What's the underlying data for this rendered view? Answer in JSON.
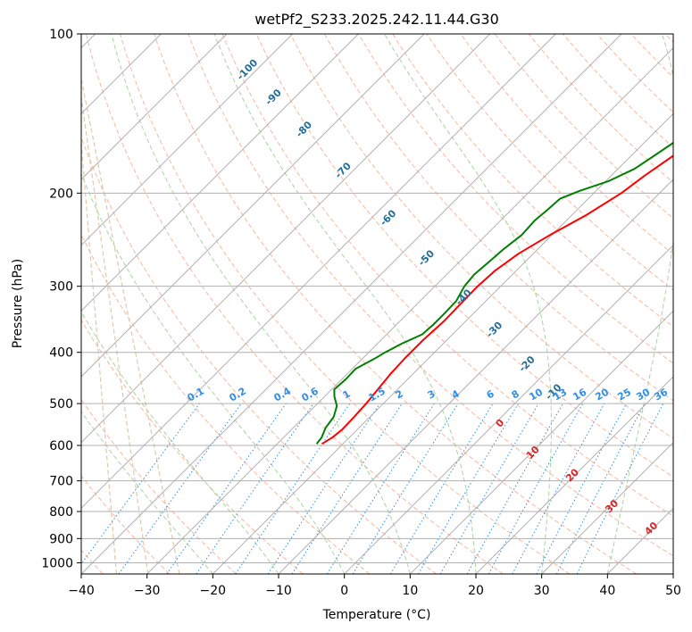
{
  "chart_data": {
    "type": "line",
    "title": "wetPf2_S233.2025.242.11.44.G30",
    "xlabel": "Temperature (°C)",
    "ylabel": "Pressure (hPa)",
    "xlim": [
      -40,
      50
    ],
    "ylim": [
      1050,
      100
    ],
    "y_scale": "log",
    "grid": true,
    "x_ticks": [
      -40,
      -30,
      -20,
      -10,
      0,
      10,
      20,
      30,
      40,
      50
    ],
    "y_ticks": [
      100,
      200,
      300,
      400,
      500,
      600,
      700,
      800,
      900,
      1000
    ],
    "isotherm_temps": [
      -130,
      -120,
      -110,
      -100,
      -90,
      -80,
      -70,
      -60,
      -50,
      -40,
      -30,
      -20,
      -10,
      0,
      10,
      20,
      30,
      40,
      50
    ],
    "dry_adiabat_labels": [
      {
        "text": "-100",
        "p": 118
      },
      {
        "text": "-90",
        "p": 133
      },
      {
        "text": "-80",
        "p": 153
      },
      {
        "text": "-70",
        "p": 183
      },
      {
        "text": "-60",
        "p": 225
      },
      {
        "text": "-50",
        "p": 268
      },
      {
        "text": "-40",
        "p": 318
      },
      {
        "text": "-30",
        "p": 366
      },
      {
        "text": "-20",
        "p": 425
      },
      {
        "text": "-10",
        "p": 480
      }
    ],
    "moist_adiabat_labels": [
      {
        "text": "0",
        "p": 550,
        "t": 24
      },
      {
        "text": "10",
        "p": 625,
        "t": 29
      },
      {
        "text": "20",
        "p": 690,
        "t": 35
      },
      {
        "text": "30",
        "p": 790,
        "t": 41
      },
      {
        "text": "40",
        "p": 870,
        "t": 47
      }
    ],
    "mixing_ratio_labels": [
      "0.1",
      "0.2",
      "0.4",
      "0.6",
      "1",
      "1.5",
      "2",
      "3",
      "4",
      "6",
      "8",
      "10",
      "13",
      "16",
      "20",
      "25",
      "30",
      "36"
    ],
    "series": [
      {
        "color": "#ff0000",
        "points": [
          {
            "p": 596,
            "t": -23.2
          },
          {
            "p": 580,
            "t": -22.6
          },
          {
            "p": 560,
            "t": -22.3
          },
          {
            "p": 530,
            "t": -22.4
          },
          {
            "p": 500,
            "t": -22.6
          },
          {
            "p": 470,
            "t": -23.0
          },
          {
            "p": 440,
            "t": -23.4
          },
          {
            "p": 410,
            "t": -23.6
          },
          {
            "p": 380,
            "t": -23.6
          },
          {
            "p": 350,
            "t": -23.3
          },
          {
            "p": 325,
            "t": -23.4
          },
          {
            "p": 300,
            "t": -23.5
          },
          {
            "p": 280,
            "t": -23.2
          },
          {
            "p": 260,
            "t": -22.2
          },
          {
            "p": 240,
            "t": -20.3
          },
          {
            "p": 220,
            "t": -17.8
          },
          {
            "p": 200,
            "t": -15.8
          },
          {
            "p": 185,
            "t": -14.9
          },
          {
            "p": 170,
            "t": -13.6
          },
          {
            "p": 160,
            "t": -12.0
          },
          {
            "p": 150,
            "t": -10.0
          },
          {
            "p": 140,
            "t": -8.0
          },
          {
            "p": 130,
            "t": -5.0
          },
          {
            "p": 120,
            "t": -2.0
          },
          {
            "p": 112,
            "t": 0.0
          },
          {
            "p": 100,
            "t": 2.3
          }
        ]
      },
      {
        "color": "#008000",
        "points": [
          {
            "p": 596,
            "t": -24.0
          },
          {
            "p": 580,
            "t": -24.2
          },
          {
            "p": 555,
            "t": -25.1
          },
          {
            "p": 530,
            "t": -25.5
          },
          {
            "p": 505,
            "t": -26.7
          },
          {
            "p": 485,
            "t": -28.5
          },
          {
            "p": 470,
            "t": -29.6
          },
          {
            "p": 450,
            "t": -29.4
          },
          {
            "p": 430,
            "t": -29.5
          },
          {
            "p": 412,
            "t": -28.2
          },
          {
            "p": 400,
            "t": -27.5
          },
          {
            "p": 385,
            "t": -26.3
          },
          {
            "p": 370,
            "t": -24.6
          },
          {
            "p": 355,
            "t": -24.4
          },
          {
            "p": 340,
            "t": -24.4
          },
          {
            "p": 320,
            "t": -24.5
          },
          {
            "p": 300,
            "t": -25.5
          },
          {
            "p": 285,
            "t": -25.8
          },
          {
            "p": 270,
            "t": -25.5
          },
          {
            "p": 255,
            "t": -25.2
          },
          {
            "p": 240,
            "t": -24.6
          },
          {
            "p": 225,
            "t": -24.8
          },
          {
            "p": 215,
            "t": -24.5
          },
          {
            "p": 205,
            "t": -24.3
          },
          {
            "p": 198,
            "t": -22.5
          },
          {
            "p": 190,
            "t": -19.6
          },
          {
            "p": 180,
            "t": -17.5
          },
          {
            "p": 170,
            "t": -16.5
          },
          {
            "p": 160,
            "t": -15.5
          },
          {
            "p": 150,
            "t": -14.0
          },
          {
            "p": 140,
            "t": -11.5
          },
          {
            "p": 130,
            "t": -9.4
          },
          {
            "p": 125,
            "t": -8.8
          },
          {
            "p": 118,
            "t": -6.8
          },
          {
            "p": 112,
            "t": -4.2
          },
          {
            "p": 105,
            "t": -2.0
          },
          {
            "p": 100,
            "t": -1.3
          }
        ]
      }
    ]
  }
}
